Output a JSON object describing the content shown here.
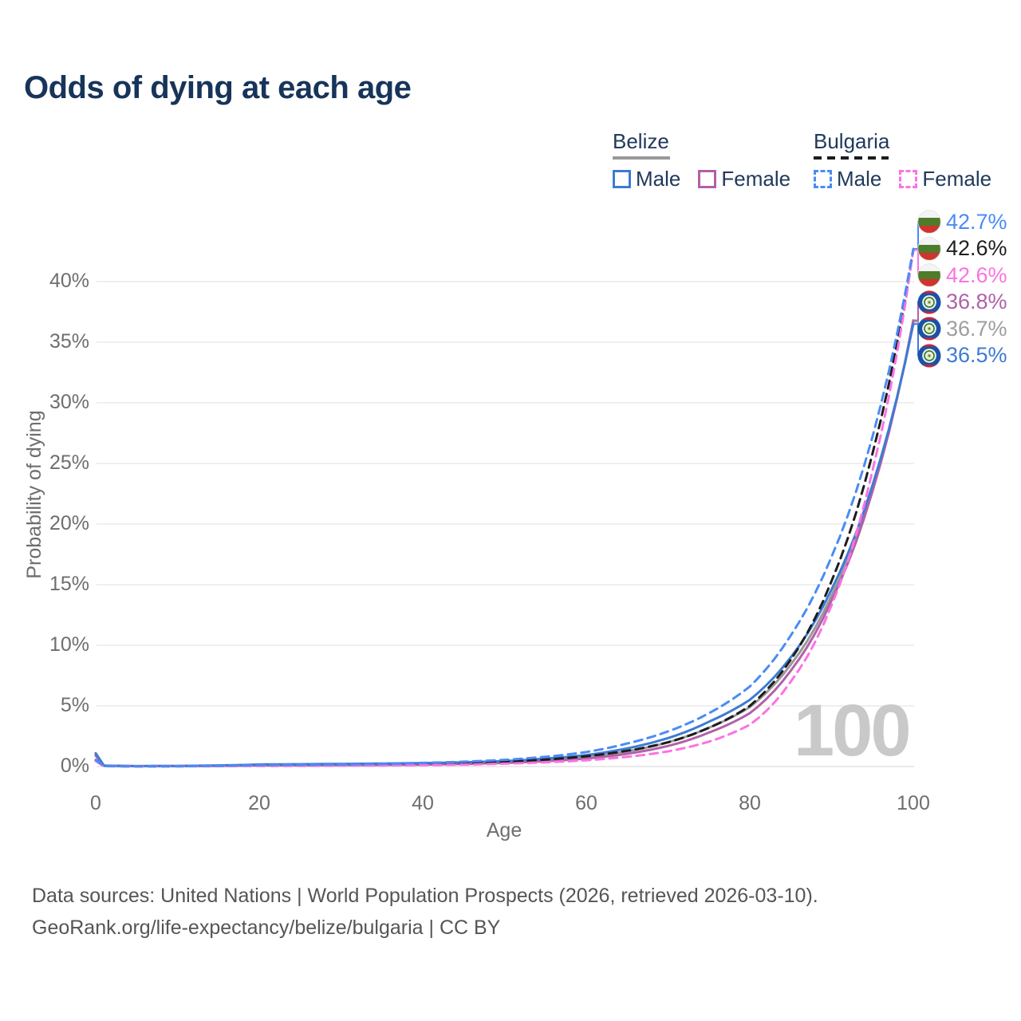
{
  "title": "Odds of dying at each age",
  "legend": {
    "groups": [
      {
        "title": "Belize",
        "underline": {
          "color": "#999999",
          "dash": false
        },
        "items": [
          {
            "label": "Male",
            "color": "#3e7bd3",
            "dash": false
          },
          {
            "label": "Female",
            "color": "#b061a8",
            "dash": false
          }
        ]
      },
      {
        "title": "Bulgaria",
        "underline": {
          "color": "#1d1d1d",
          "dash": true
        },
        "items": [
          {
            "label": "Male",
            "color": "#4a8cf5",
            "dash": true
          },
          {
            "label": "Female",
            "color": "#fb72e2",
            "dash": true
          }
        ]
      }
    ]
  },
  "chart_data": {
    "type": "line",
    "title": "Odds of dying at each age",
    "xlabel": "Age",
    "ylabel": "Probability of dying",
    "watermark": "100",
    "xlim": [
      0,
      100
    ],
    "ylim": [
      0,
      45
    ],
    "x_ticks": [
      0,
      20,
      40,
      60,
      80,
      100
    ],
    "y_ticks": [
      0,
      5,
      10,
      15,
      20,
      25,
      30,
      35,
      40
    ],
    "y_tick_suffix": "%",
    "grid": "horizontal",
    "legend_position": "top-right",
    "x": [
      0,
      1,
      5,
      10,
      20,
      30,
      40,
      45,
      50,
      55,
      60,
      65,
      70,
      75,
      80,
      85,
      90,
      95,
      100
    ],
    "series": [
      {
        "name": "Belize Male",
        "country": "Belize",
        "sex": "Male",
        "color": "#3e7bd3",
        "dash": false,
        "flag": "bz",
        "values": [
          1.1,
          0.08,
          0.04,
          0.05,
          0.17,
          0.22,
          0.28,
          0.35,
          0.45,
          0.65,
          0.95,
          1.5,
          2.35,
          3.7,
          5.5,
          9.0,
          14.6,
          23.2,
          36.5
        ]
      },
      {
        "name": "Belize Female",
        "country": "Belize",
        "sex": "Female",
        "color": "#b061a8",
        "dash": false,
        "flag": "bz",
        "values": [
          0.9,
          0.06,
          0.03,
          0.035,
          0.09,
          0.11,
          0.16,
          0.21,
          0.3,
          0.44,
          0.66,
          1.05,
          1.7,
          2.8,
          4.4,
          7.9,
          13.7,
          22.7,
          36.8
        ]
      },
      {
        "name": "Belize (both sexes)",
        "country": "Belize",
        "sex": "Both",
        "color": "#999999",
        "dash": false,
        "flag": "bz",
        "values": [
          1.0,
          0.07,
          0.035,
          0.042,
          0.13,
          0.16,
          0.21,
          0.27,
          0.37,
          0.54,
          0.8,
          1.25,
          2.0,
          3.2,
          4.9,
          8.4,
          14.1,
          22.9,
          36.7
        ]
      },
      {
        "name": "Bulgaria Male",
        "country": "Bulgaria",
        "sex": "Male",
        "color": "#4a8cf5",
        "dash": true,
        "flag": "bg",
        "values": [
          0.55,
          0.04,
          0.02,
          0.03,
          0.12,
          0.17,
          0.3,
          0.4,
          0.55,
          0.8,
          1.2,
          1.9,
          2.9,
          4.4,
          6.6,
          10.8,
          17.3,
          27.2,
          42.7
        ]
      },
      {
        "name": "Bulgaria Female",
        "country": "Bulgaria",
        "sex": "Female",
        "color": "#fb72e2",
        "dash": true,
        "flag": "bg",
        "values": [
          0.45,
          0.03,
          0.015,
          0.02,
          0.05,
          0.07,
          0.11,
          0.16,
          0.24,
          0.35,
          0.52,
          0.8,
          1.25,
          2.05,
          3.45,
          7.0,
          13.3,
          24.4,
          42.6
        ]
      },
      {
        "name": "Bulgaria (both sexes)",
        "country": "Bulgaria",
        "sex": "Both",
        "color": "#1d1d1d",
        "dash": true,
        "flag": "bg",
        "values": [
          0.5,
          0.035,
          0.018,
          0.025,
          0.09,
          0.12,
          0.2,
          0.27,
          0.4,
          0.57,
          0.85,
          1.3,
          2.0,
          3.2,
          5.0,
          8.8,
          15.3,
          25.8,
          42.6
        ]
      }
    ],
    "end_labels": [
      {
        "text": "42.7%",
        "value": 42.7,
        "color": "#4a8cf5",
        "flag": "bg",
        "series": "Bulgaria Male"
      },
      {
        "text": "42.6%",
        "value": 42.6,
        "color": "#1f1f1f",
        "flag": "bg",
        "series": "Bulgaria (both sexes)"
      },
      {
        "text": "42.6%",
        "value": 42.6,
        "color": "#fb72e2",
        "flag": "bg",
        "series": "Bulgaria Female"
      },
      {
        "text": "36.8%",
        "value": 36.8,
        "color": "#b061a8",
        "flag": "bz",
        "series": "Belize Female"
      },
      {
        "text": "36.7%",
        "value": 36.7,
        "color": "#9e9e9e",
        "flag": "bz",
        "series": "Belize (both sexes)"
      },
      {
        "text": "36.5%",
        "value": 36.5,
        "color": "#3e7bd3",
        "flag": "bz",
        "series": "Belize Male"
      }
    ]
  },
  "footer": {
    "line1": "Data sources: United Nations | World Population Prospects (2026, retrieved 2026-03-10).",
    "line2": "GeoRank.org/life-expectancy/belize/bulgaria | CC BY"
  }
}
